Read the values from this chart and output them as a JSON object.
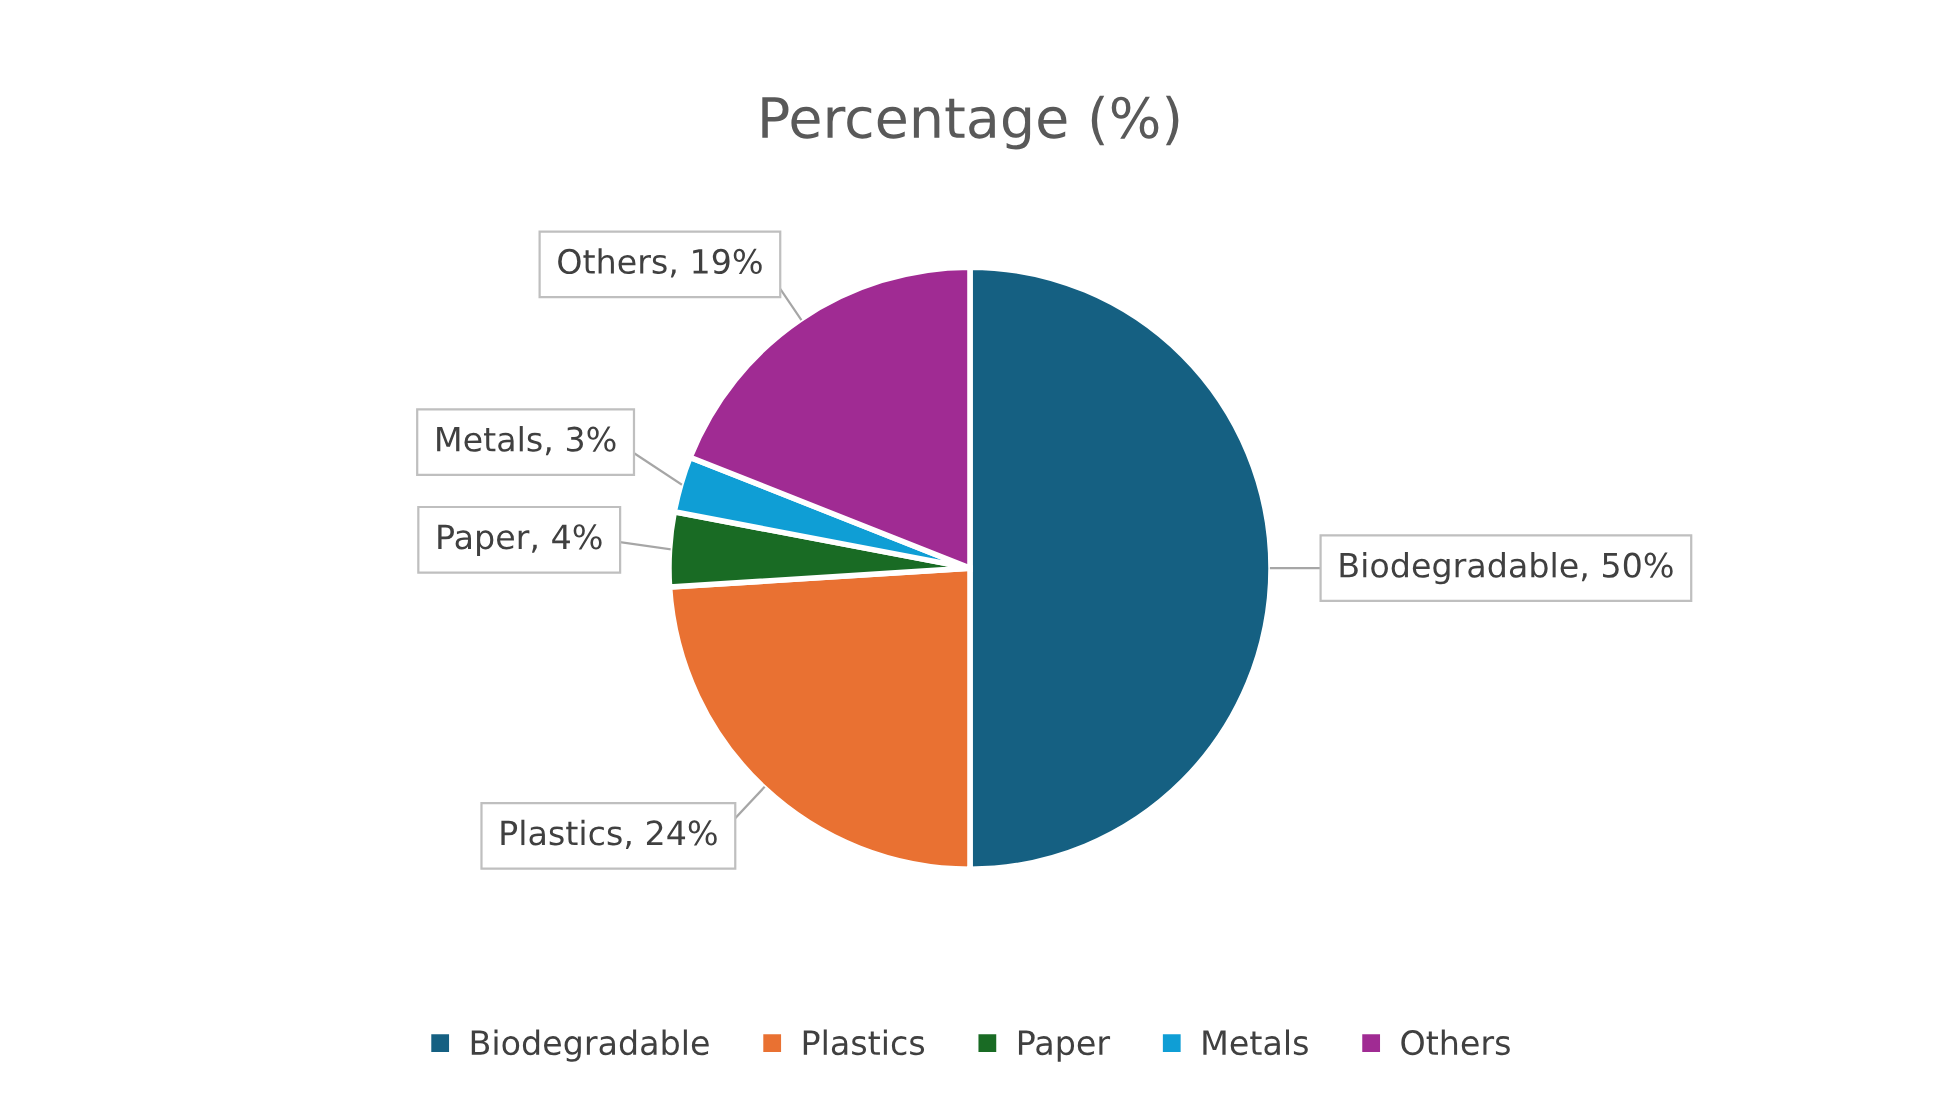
{
  "chart_data": {
    "type": "pie",
    "title": "Percentage (%)",
    "categories": [
      "Biodegradable",
      "Plastics",
      "Paper",
      "Metals",
      "Others"
    ],
    "values": [
      50,
      24,
      4,
      3,
      19
    ],
    "colors": [
      "#156082",
      "#e97132",
      "#196b24",
      "#0f9ed5",
      "#a02b93"
    ],
    "value_labels": [
      "Biodegradable, 50%",
      "Plastics, 24%",
      "Paper, 4%",
      "Metals, 3%",
      "Others, 19%"
    ],
    "legend": "bottom"
  }
}
